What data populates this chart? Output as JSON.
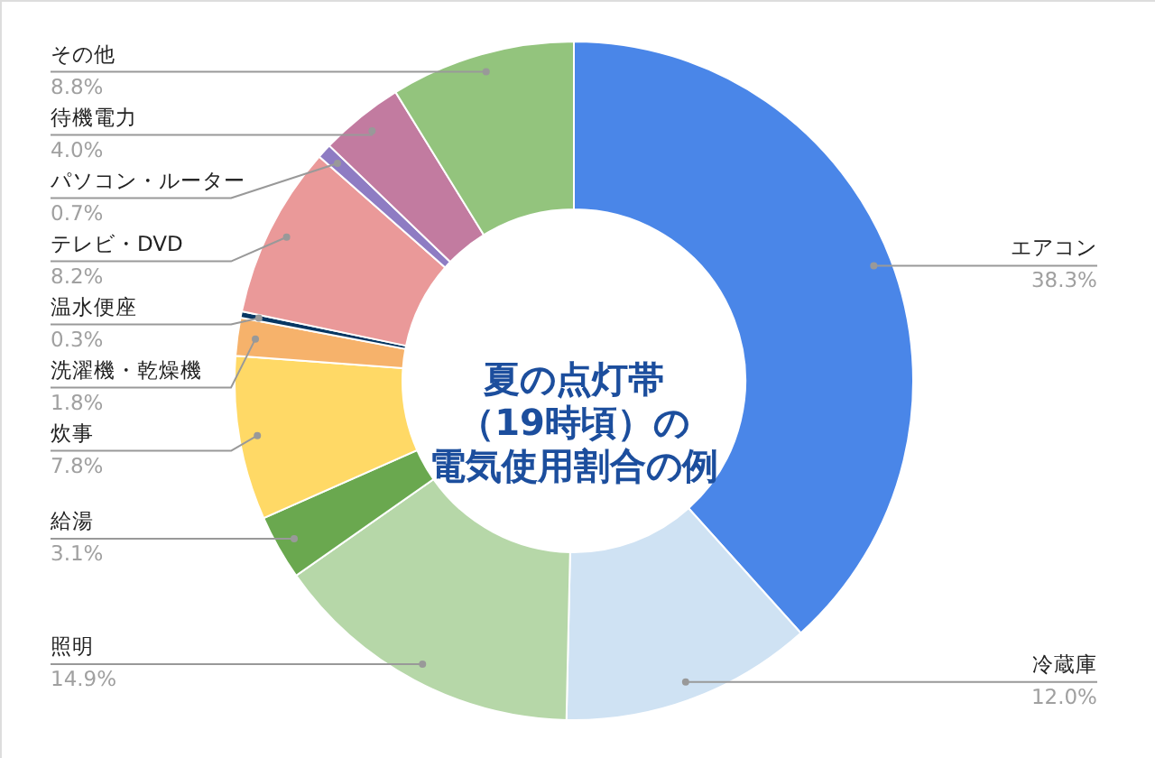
{
  "chart_data": {
    "type": "donut",
    "title": "夏の点灯帯（19時頃）の電気使用割合の例",
    "categories": [
      "エアコン",
      "冷蔵庫",
      "照明",
      "給湯",
      "炊事",
      "洗濯機・乾燥機",
      "温水便座",
      "テレビ・DVD",
      "パソコン・ルーター",
      "待機電力",
      "その他"
    ],
    "values": [
      38.3,
      12.0,
      14.9,
      3.1,
      7.8,
      1.8,
      0.3,
      8.2,
      0.7,
      4.0,
      8.8
    ],
    "colors": [
      "#4a86e8",
      "#cfe2f3",
      "#b6d7a8",
      "#6aa84f",
      "#ffd966",
      "#f6b26b",
      "#073763",
      "#ea9999",
      "#8e7cc3",
      "#c27ba0",
      "#93c47d"
    ],
    "value_labels": [
      "38.3%",
      "12.0%",
      "14.9%",
      "3.1%",
      "7.8%",
      "1.8%",
      "0.3%",
      "8.2%",
      "0.7%",
      "4.0%",
      "8.8%"
    ]
  }
}
